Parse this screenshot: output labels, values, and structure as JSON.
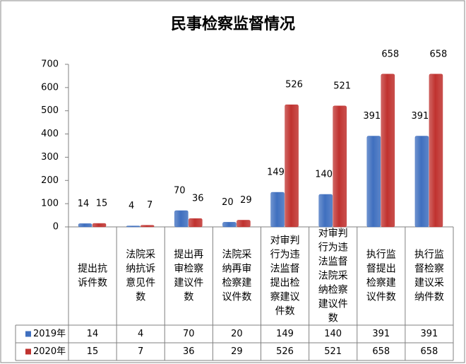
{
  "chart_data": {
    "type": "bar",
    "title": "民事检察监督情况",
    "categories": [
      "提出抗诉件数",
      "法院采纳抗诉意见件数",
      "提出再审检察建议件数",
      "法院采纳再审检察建议件数",
      "对审判行为违法监督提出检察建议件数",
      "对审判行为违法监督法院采纳检察建议件数",
      "执行监督提出检察建议件数",
      "执行监督检察建议采纳件数"
    ],
    "series": [
      {
        "name": "2019年",
        "color": "#3f6fbf",
        "values": [
          14,
          4,
          70,
          20,
          149,
          140,
          391,
          391
        ]
      },
      {
        "name": "2020年",
        "color": "#c0322f",
        "values": [
          15,
          7,
          36,
          29,
          526,
          521,
          658,
          658
        ]
      }
    ],
    "ylim": [
      0,
      700
    ],
    "yticks": [
      0,
      100,
      200,
      300,
      400,
      500,
      600,
      700
    ],
    "grid": false
  }
}
